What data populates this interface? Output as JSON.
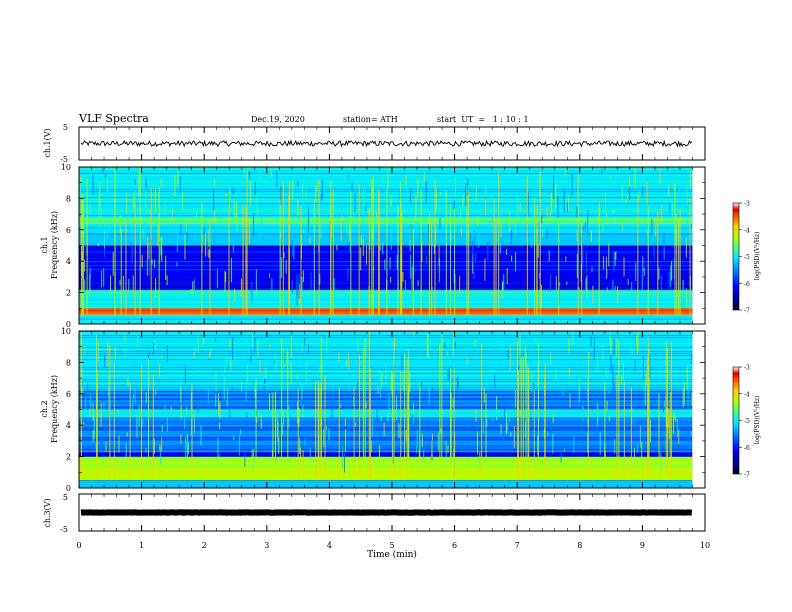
{
  "header": {
    "title": "VLF Spectra",
    "date": "Dec.19, 2020",
    "station": "station= ATH",
    "start": "start  UT  =   1 : 10 : 1"
  },
  "chart_data": [
    {
      "type": "line",
      "panel": "ch1-waveform",
      "ylabel": "ch.1(V)",
      "ylim": [
        -5,
        5
      ],
      "y_ticks": [
        "5",
        "-5"
      ],
      "x_range": [
        0,
        10
      ],
      "x_unit": "min",
      "baseline_value": 0,
      "data_end_x": 9.8,
      "series_color": "#000000"
    },
    {
      "type": "heatmap",
      "panel": "ch1-spectrogram",
      "ylabel": "ch.1\nFrequency (kHz)",
      "ylabel_line1": "ch.1",
      "ylabel_line2": "Frequency (kHz)",
      "ylim": [
        0,
        10
      ],
      "y_ticks": [
        "0",
        "2",
        "4",
        "6",
        "8",
        "10"
      ],
      "x_range": [
        0,
        10
      ],
      "data_end_x": 9.8,
      "bands_khz": [
        {
          "from": 0.0,
          "to": 0.6,
          "level": -5.6
        },
        {
          "from": 0.6,
          "to": 1.0,
          "level": -4.0
        },
        {
          "from": 1.0,
          "to": 2.2,
          "level": -5.4
        },
        {
          "from": 2.2,
          "to": 2.6,
          "level": -6.6
        },
        {
          "from": 2.6,
          "to": 4.0,
          "level": -6.3
        },
        {
          "from": 4.0,
          "to": 5.0,
          "level": -6.6
        },
        {
          "from": 5.0,
          "to": 6.4,
          "level": -5.8
        },
        {
          "from": 6.4,
          "to": 6.8,
          "level": -5.2
        },
        {
          "from": 6.8,
          "to": 10.0,
          "level": -5.6
        }
      ],
      "colorbar": {
        "label": "log(PSD)(V²/Hz)",
        "ticks": [
          "-3",
          "-4",
          "-5",
          "-6",
          "-7"
        ],
        "range": [
          -7,
          -3
        ]
      }
    },
    {
      "type": "heatmap",
      "panel": "ch2-spectrogram",
      "ylabel": "ch.2\nFrequency (kHz)",
      "ylabel_line1": "ch.2",
      "ylabel_line2": "Frequency (kHz)",
      "ylim": [
        0,
        10
      ],
      "y_ticks": [
        "0",
        "2",
        "4",
        "6",
        "8",
        "10"
      ],
      "x_range": [
        0,
        10
      ],
      "data_end_x": 9.8,
      "bands_khz": [
        {
          "from": 0.0,
          "to": 0.5,
          "level": -5.8
        },
        {
          "from": 0.5,
          "to": 2.0,
          "level": -4.8
        },
        {
          "from": 2.0,
          "to": 2.3,
          "level": -6.6
        },
        {
          "from": 2.3,
          "to": 4.5,
          "level": -6.0
        },
        {
          "from": 4.5,
          "to": 5.0,
          "level": -5.4
        },
        {
          "from": 5.0,
          "to": 6.2,
          "level": -6.0
        },
        {
          "from": 6.2,
          "to": 10.0,
          "level": -5.6
        }
      ],
      "colorbar": {
        "label": "log(PSD)(V²/Hz)",
        "ticks": [
          "-3",
          "-4",
          "-5",
          "-6",
          "-7"
        ],
        "range": [
          -7,
          -3
        ]
      }
    },
    {
      "type": "line",
      "panel": "ch3-waveform",
      "ylabel": "ch.3(V)",
      "ylim": [
        -5,
        5
      ],
      "y_ticks": [
        "5",
        "-5"
      ],
      "x_range": [
        0,
        10
      ],
      "baseline_value": 0,
      "data_end_x": 9.8,
      "series_color": "#000000"
    }
  ],
  "x_axis": {
    "label": "Time (min)",
    "ticks": [
      "0",
      "1",
      "2",
      "3",
      "4",
      "5",
      "6",
      "7",
      "8",
      "9",
      "10"
    ]
  },
  "colorscale": [
    "#00008f",
    "#0000ff",
    "#0078ff",
    "#00e8ff",
    "#46ff8c",
    "#b4ff00",
    "#ffcc00",
    "#ff5a00",
    "#e60000",
    "#ffffff"
  ]
}
